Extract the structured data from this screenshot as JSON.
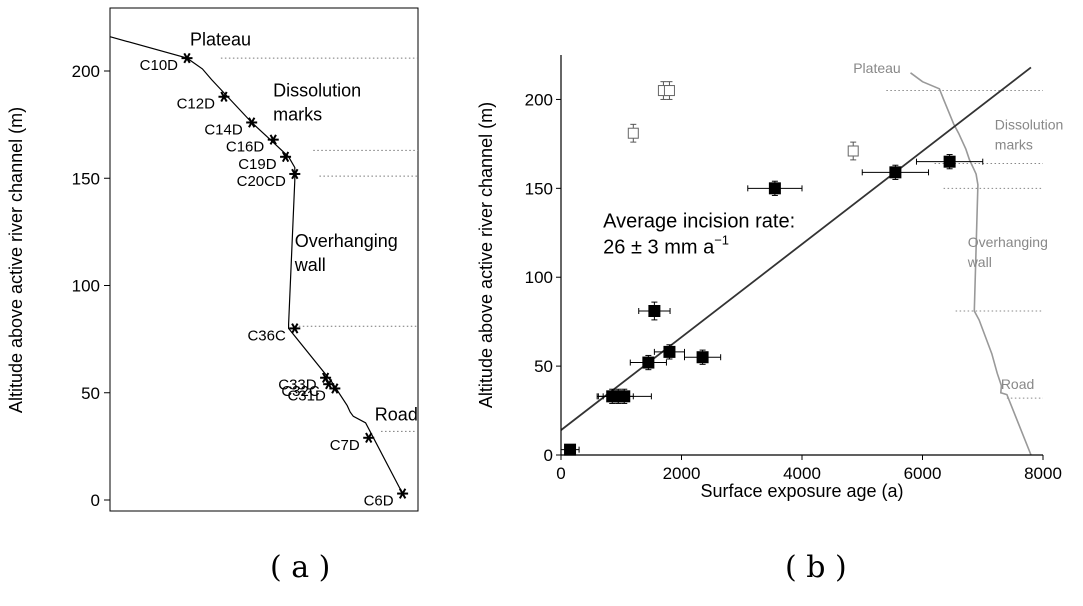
{
  "captions": {
    "a": "( a )",
    "b": "( b )"
  },
  "chart_data": [
    {
      "type": "scatter",
      "panel": "a",
      "ylabel": "Altitude above active river channel (m)",
      "ylim": [
        -5,
        222
      ],
      "yticks": [
        0,
        50,
        100,
        150,
        200
      ],
      "profile_line": [
        [
          0.0,
          216
        ],
        [
          0.25,
          206
        ],
        [
          0.3,
          201
        ],
        [
          0.33,
          196
        ],
        [
          0.46,
          176
        ],
        [
          0.52,
          168
        ],
        [
          0.58,
          160
        ],
        [
          0.6,
          155
        ],
        [
          0.6,
          152
        ],
        [
          0.6,
          149
        ],
        [
          0.58,
          82
        ],
        [
          0.58,
          80
        ],
        [
          0.72,
          55
        ],
        [
          0.77,
          44
        ],
        [
          0.78,
          41
        ],
        [
          0.79,
          39
        ],
        [
          0.83,
          36
        ],
        [
          0.95,
          3
        ]
      ],
      "samples": [
        {
          "label": "C10D",
          "y": 206,
          "x": 0.25,
          "side": "left"
        },
        {
          "label": "C12D",
          "y": 188,
          "x": 0.37,
          "side": "left"
        },
        {
          "label": "C14D",
          "y": 176,
          "x": 0.46,
          "side": "left"
        },
        {
          "label": "C16D",
          "y": 168,
          "x": 0.53,
          "side": "left"
        },
        {
          "label": "C19D",
          "y": 160,
          "x": 0.57,
          "side": "left"
        },
        {
          "label": "C20CD",
          "y": 152,
          "x": 0.6,
          "side": "left"
        },
        {
          "label": "C36C",
          "y": 80,
          "x": 0.6,
          "side": "left"
        },
        {
          "label": "C33D",
          "y": 57,
          "x": 0.7,
          "side": "left"
        },
        {
          "label": "C32C",
          "y": 54,
          "x": 0.71,
          "side": "left"
        },
        {
          "label": "C31D",
          "y": 52,
          "x": 0.73,
          "side": "left"
        },
        {
          "label": "C7D",
          "y": 29,
          "x": 0.84,
          "side": "left"
        },
        {
          "label": "C6D",
          "y": 3,
          "x": 0.95,
          "side": "left"
        }
      ],
      "zones": [
        {
          "lines": [
            "Plateau"
          ],
          "y": 212,
          "x": 0.25
        },
        {
          "lines": [
            "Dissolution",
            "marks"
          ],
          "y": 188,
          "x": 0.52
        },
        {
          "lines": [
            "Overhanging",
            "wall"
          ],
          "y": 118,
          "x": 0.59
        },
        {
          "lines": [
            "Road"
          ],
          "y": 37,
          "x": 0.85
        }
      ],
      "dotted_lines": [
        {
          "y": 206,
          "x0": 0.36,
          "x1": 1.0
        },
        {
          "y": 163,
          "x0": 0.66,
          "x1": 1.0
        },
        {
          "y": 151,
          "x0": 0.68,
          "x1": 1.0
        },
        {
          "y": 81,
          "x0": 0.6,
          "x1": 1.0
        },
        {
          "y": 32,
          "x0": 0.88,
          "x1": 1.0
        }
      ],
      "grid": false
    },
    {
      "type": "scatter",
      "panel": "b",
      "xlabel": "Surface exposure age (a)",
      "ylabel": "Altitude above active river channel (m)",
      "xlim": [
        0,
        8000
      ],
      "ylim": [
        0,
        225
      ],
      "xticks": [
        0,
        2000,
        4000,
        6000,
        8000
      ],
      "yticks": [
        0,
        50,
        100,
        150,
        200
      ],
      "annotation": [
        "Average incision rate:",
        "26 ± 3 mm a",
        "−1"
      ],
      "annotation_pos": [
        700,
        120
      ],
      "fit_line": [
        [
          0,
          14
        ],
        [
          7800,
          218
        ]
      ],
      "filled_points": [
        {
          "x": 150,
          "y": 3,
          "xerr": 150,
          "yerr": 1
        },
        {
          "x": 850,
          "y": 33,
          "xerr": 230,
          "yerr": 4
        },
        {
          "x": 950,
          "y": 33,
          "xerr": 250,
          "yerr": 4
        },
        {
          "x": 1050,
          "y": 33,
          "xerr": 450,
          "yerr": 4
        },
        {
          "x": 1450,
          "y": 52,
          "xerr": 300,
          "yerr": 4
        },
        {
          "x": 1550,
          "y": 81,
          "xerr": 260,
          "yerr": 5
        },
        {
          "x": 1800,
          "y": 58,
          "xerr": 250,
          "yerr": 4
        },
        {
          "x": 2350,
          "y": 55,
          "xerr": 300,
          "yerr": 4
        },
        {
          "x": 3550,
          "y": 150,
          "xerr": 450,
          "yerr": 4
        },
        {
          "x": 5550,
          "y": 159,
          "xerr": 550,
          "yerr": 4
        },
        {
          "x": 6450,
          "y": 165,
          "xerr": 550,
          "yerr": 4
        }
      ],
      "open_points": [
        {
          "x": 1200,
          "y": 181,
          "xerr": 0,
          "yerr": 5
        },
        {
          "x": 1700,
          "y": 205,
          "xerr": 0,
          "yerr": 5
        },
        {
          "x": 1800,
          "y": 205,
          "xerr": 0,
          "yerr": 5
        },
        {
          "x": 4850,
          "y": 171,
          "xerr": 0,
          "yerr": 5
        }
      ],
      "profile_line": [
        [
          5800,
          215
        ],
        [
          6000,
          210
        ],
        [
          6280,
          206
        ],
        [
          6350,
          200
        ],
        [
          6520,
          186
        ],
        [
          6600,
          181
        ],
        [
          6720,
          172
        ],
        [
          6780,
          166
        ],
        [
          6850,
          161
        ],
        [
          6890,
          158
        ],
        [
          6920,
          152
        ],
        [
          6860,
          81
        ],
        [
          6940,
          76
        ],
        [
          7150,
          57
        ],
        [
          7240,
          46
        ],
        [
          7310,
          39
        ],
        [
          7300,
          35
        ],
        [
          7400,
          34
        ],
        [
          7800,
          0
        ]
      ],
      "profile_origin": [
        4600,
        0
      ],
      "profile_scale": 0.85,
      "zones": [
        {
          "lines": [
            "Plateau"
          ],
          "x": 4850,
          "y": 215
        },
        {
          "lines": [
            "Dissolution",
            "marks"
          ],
          "x": 7200,
          "y": 183
        },
        {
          "lines": [
            "Overhanging",
            "wall"
          ],
          "x": 6750,
          "y": 117
        },
        {
          "lines": [
            "Road"
          ],
          "x": 7300,
          "y": 37
        }
      ],
      "dotted_lines": [
        {
          "y": 205,
          "x0": 5400,
          "x1": 8000
        },
        {
          "y": 164,
          "x0": 6200,
          "x1": 8000
        },
        {
          "y": 150,
          "x0": 6350,
          "x1": 8000
        },
        {
          "y": 81,
          "x0": 6550,
          "x1": 8000
        },
        {
          "y": 32,
          "x0": 7400,
          "x1": 8000
        }
      ],
      "grid": false
    }
  ]
}
